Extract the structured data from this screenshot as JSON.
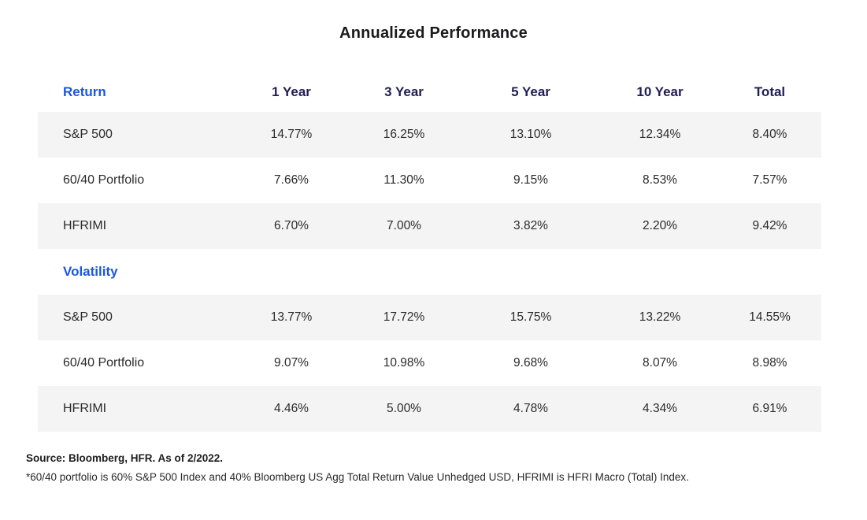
{
  "title": "Annualized Performance",
  "colors": {
    "accent_blue": "#1b56e3",
    "header_navy": "#201d55",
    "row_stripe": "#f4f4f5",
    "text_dark": "#2b2b2b"
  },
  "chart_data": {
    "type": "table",
    "title": "Annualized Performance",
    "columns": [
      "1 Year",
      "3 Year",
      "5 Year",
      "10 Year",
      "Total"
    ],
    "sections": [
      {
        "label": "Return",
        "rows": [
          {
            "label": "S&P 500",
            "values": [
              "14.77%",
              "16.25%",
              "13.10%",
              "12.34%",
              "8.40%"
            ]
          },
          {
            "label": "60/40 Portfolio",
            "values": [
              "7.66%",
              "11.30%",
              "9.15%",
              "8.53%",
              "7.57%"
            ]
          },
          {
            "label": "HFRIMI",
            "values": [
              "6.70%",
              "7.00%",
              "3.82%",
              "2.20%",
              "9.42%"
            ]
          }
        ]
      },
      {
        "label": "Volatility",
        "rows": [
          {
            "label": "S&P 500",
            "values": [
              "13.77%",
              "17.72%",
              "15.75%",
              "13.22%",
              "14.55%"
            ]
          },
          {
            "label": "60/40 Portfolio",
            "values": [
              "9.07%",
              "10.98%",
              "9.68%",
              "8.07%",
              "8.98%"
            ]
          },
          {
            "label": "HFRIMI",
            "values": [
              "4.46%",
              "5.00%",
              "4.78%",
              "4.34%",
              "6.91%"
            ]
          }
        ]
      }
    ],
    "source": "Source: Bloomberg, HFR. As of 2/2022.",
    "footnote": "*60/40 portfolio is 60% S&P 500 Index and 40% Bloomberg US Agg Total Return Value Unhedged USD, HFRIMI is HFRI Macro (Total) Index."
  }
}
